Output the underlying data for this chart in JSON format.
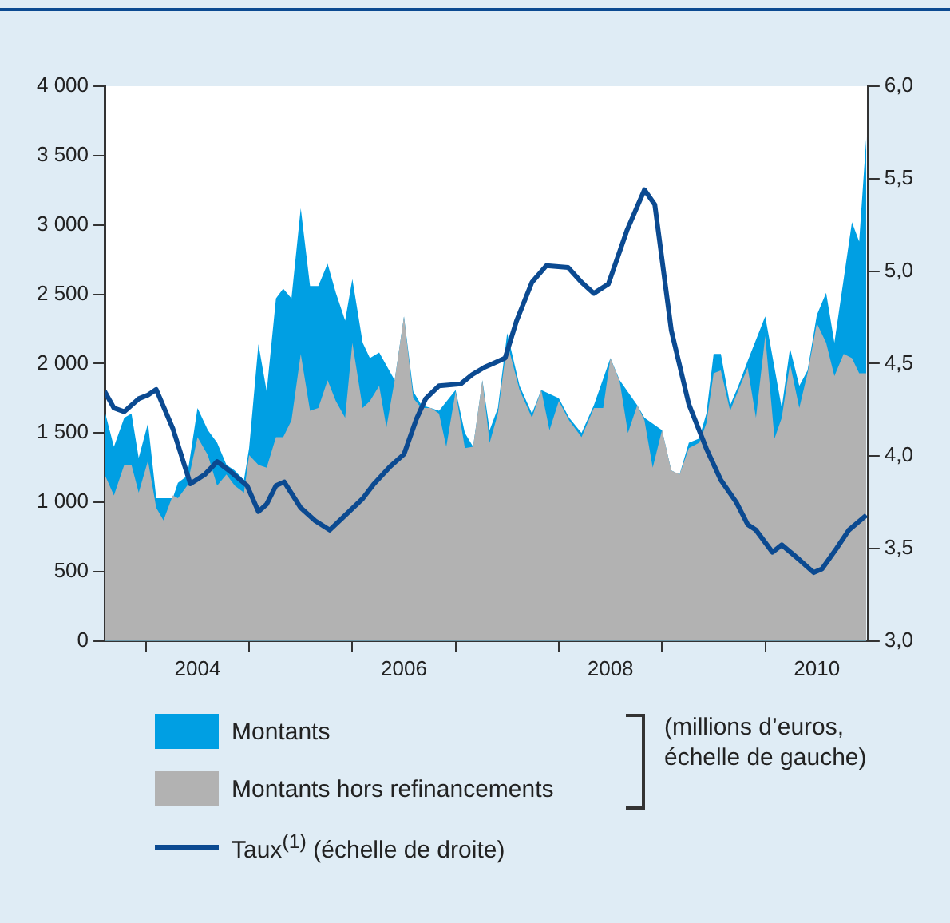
{
  "chart_data": {
    "type": "area",
    "x": [
      2003.6,
      2003.69,
      2003.79,
      2003.86,
      2003.93,
      2004.02,
      2004.1,
      2004.17,
      2004.26,
      2004.31,
      2004.4,
      2004.5,
      2004.6,
      2004.69,
      2004.78,
      2004.86,
      2004.95,
      2005.0,
      2005.09,
      2005.17,
      2005.26,
      2005.33,
      2005.41,
      2005.5,
      2005.59,
      2005.67,
      2005.76,
      2005.84,
      2005.93,
      2006.0,
      2006.1,
      2006.17,
      2006.26,
      2006.33,
      2006.41,
      2006.5,
      2006.59,
      2006.67,
      2006.76,
      2006.84,
      2006.91,
      2007.0,
      2007.09,
      2007.17,
      2007.26,
      2007.33,
      2007.41,
      2007.5,
      2007.62,
      2007.74,
      2007.83,
      2007.91,
      2008.0,
      2008.1,
      2008.22,
      2008.34,
      2008.43,
      2008.5,
      2008.59,
      2008.67,
      2008.76,
      2008.83,
      2008.91,
      2009.0,
      2009.09,
      2009.17,
      2009.26,
      2009.36,
      2009.43,
      2009.5,
      2009.57,
      2009.66,
      2009.74,
      2009.83,
      2009.91,
      2010.0,
      2010.09,
      2010.16,
      2010.24,
      2010.33,
      2010.41,
      2010.5,
      2010.59,
      2010.67,
      2010.76,
      2010.84,
      2010.91,
      2010.98
    ],
    "series": [
      {
        "name": "Montants",
        "color": "#009fe3",
        "values": [
          1660,
          1400,
          1610,
          1640,
          1320,
          1570,
          1030,
          null,
          1030,
          1140,
          1190,
          1680,
          1520,
          1430,
          1270,
          1230,
          1160,
          1390,
          2140,
          1800,
          2470,
          2540,
          2470,
          3120,
          2560,
          2560,
          2720,
          2510,
          2310,
          2610,
          2150,
          2040,
          2080,
          null,
          1880,
          2340,
          1800,
          1700,
          1680,
          1660,
          null,
          1810,
          1500,
          1400,
          1880,
          1520,
          1680,
          2220,
          1840,
          1640,
          1810,
          null,
          1750,
          1610,
          1500,
          1700,
          null,
          2040,
          1880,
          null,
          1700,
          1610,
          null,
          1520,
          1230,
          1200,
          1430,
          1460,
          1640,
          2070,
          2070,
          1700,
          1840,
          2020,
          null,
          2340,
          null,
          1680,
          2110,
          1840,
          1950,
          2350,
          2510,
          2150,
          2610,
          3020,
          2880,
          3640
        ]
      },
      {
        "name": "Montants hors refinancements",
        "color": "#b2b2b2",
        "values": [
          1200,
          1050,
          1270,
          1270,
          1070,
          1300,
          960,
          870,
          1050,
          1030,
          1120,
          1470,
          1340,
          1120,
          1200,
          1120,
          1070,
          1340,
          1270,
          1250,
          1470,
          1470,
          1590,
          2070,
          1660,
          1680,
          1880,
          1730,
          1610,
          2150,
          1680,
          1730,
          1840,
          1540,
          1880,
          2340,
          1750,
          1680,
          1680,
          1640,
          1400,
          1800,
          1390,
          1400,
          1880,
          1430,
          1640,
          2150,
          1810,
          1610,
          1810,
          1520,
          1730,
          1590,
          1470,
          1680,
          1680,
          2040,
          1870,
          1500,
          1700,
          1590,
          1250,
          1520,
          1230,
          1200,
          1390,
          1430,
          1570,
          1930,
          1950,
          1660,
          1810,
          1970,
          1610,
          2200,
          1460,
          1610,
          2000,
          1680,
          1930,
          2290,
          2150,
          1910,
          2070,
          2040,
          1930,
          1930
        ]
      },
      {
        "name": "Taux$^{(1)}$ (échelle de droite)",
        "type": "line",
        "axis": "y2",
        "color": "#0b4a91",
        "x": [
          2003.6,
          2003.69,
          2003.79,
          2003.93,
          2004.02,
          2004.1,
          2004.26,
          2004.43,
          2004.57,
          2004.69,
          2004.81,
          2004.98,
          2005.09,
          2005.17,
          2005.26,
          2005.34,
          2005.5,
          2005.64,
          2005.78,
          2005.95,
          2006.1,
          2006.21,
          2006.36,
          2006.5,
          2006.62,
          2006.71,
          2006.84,
          2007.05,
          2007.16,
          2007.28,
          2007.36,
          2007.48,
          2007.59,
          2007.74,
          2007.88,
          2008.09,
          2008.22,
          2008.34,
          2008.48,
          2008.66,
          2008.83,
          2008.93,
          2009.09,
          2009.26,
          2009.43,
          2009.57,
          2009.72,
          2009.83,
          2009.91,
          2010.07,
          2010.16,
          2010.33,
          2010.47,
          2010.55,
          2010.69,
          2010.81,
          2010.98
        ],
        "values": [
          4.35,
          4.26,
          4.24,
          4.31,
          4.33,
          4.36,
          4.15,
          3.85,
          3.9,
          3.97,
          3.92,
          3.84,
          3.7,
          3.74,
          3.84,
          3.86,
          3.72,
          3.65,
          3.6,
          3.69,
          3.77,
          3.85,
          3.94,
          4.01,
          4.2,
          4.31,
          4.38,
          4.39,
          4.44,
          4.48,
          4.5,
          4.53,
          4.73,
          4.94,
          5.03,
          5.02,
          4.94,
          4.88,
          4.93,
          5.22,
          5.44,
          5.36,
          4.68,
          4.28,
          4.04,
          3.87,
          3.75,
          3.63,
          3.6,
          3.48,
          3.52,
          3.44,
          3.37,
          3.39,
          3.5,
          3.6,
          3.68
        ]
      }
    ],
    "xlim": [
      2003.6,
      2011.0
    ],
    "xticks": [
      {
        "value": 2004,
        "label": null
      },
      {
        "value": 2004.5,
        "label": "2004"
      },
      {
        "value": 2005,
        "label": null
      },
      {
        "value": 2006,
        "label": null
      },
      {
        "value": 2006.5,
        "label": "2006"
      },
      {
        "value": 2007,
        "label": null
      },
      {
        "value": 2008,
        "label": null
      },
      {
        "value": 2008.5,
        "label": "2008"
      },
      {
        "value": 2009,
        "label": null
      },
      {
        "value": 2010,
        "label": null
      },
      {
        "value": 2010.5,
        "label": "2010"
      }
    ],
    "ylim": [
      0,
      4000
    ],
    "yticks": [
      0,
      500,
      {
        "value": 1000,
        "label": "1 000"
      },
      {
        "value": 1500,
        "label": "1 500"
      },
      {
        "value": 2000,
        "label": "2 000"
      },
      {
        "value": 2500,
        "label": "2 500"
      },
      {
        "value": 3000,
        "label": "3 000"
      },
      {
        "value": 3500,
        "label": "3 500"
      },
      {
        "value": 4000,
        "label": "4 000"
      }
    ],
    "y2lim": [
      3,
      6
    ],
    "y2ticks": [
      {
        "value": 3,
        "label": "3,0"
      },
      {
        "value": 3.5,
        "label": "3,5"
      },
      {
        "value": 4,
        "label": "4,0"
      },
      {
        "value": 4.5,
        "label": "4,5"
      },
      {
        "value": 5,
        "label": "5,0"
      },
      {
        "value": 5.5,
        "label": "5,5"
      },
      {
        "value": 6,
        "label": "6,0"
      }
    ],
    "annotations": [
      "(millions d’euros, échelle de gauche)"
    ],
    "legend": "bottom",
    "marker": "none",
    "grid": false
  }
}
